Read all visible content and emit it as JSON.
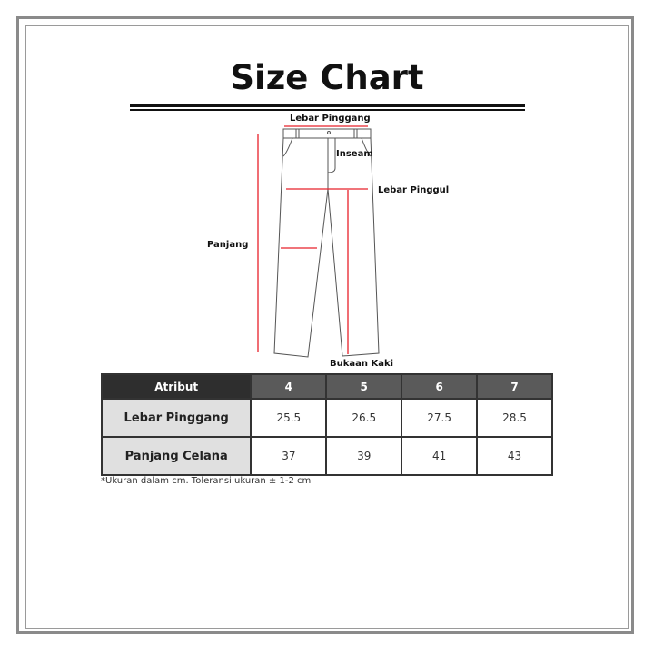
{
  "title": "Size Chart",
  "diagram_labels": {
    "waist": "Lebar Pinggang",
    "inseam": "Inseam",
    "hip": "Lebar Pinggul",
    "length": "Panjang",
    "leg_opening": "Bukaan Kaki"
  },
  "colors": {
    "measure_line": "#e8202a",
    "header_dark": "#2e2e2e",
    "header": "#5a5a5a",
    "row_header_bg": "#e0e0e0"
  },
  "table": {
    "headers": [
      "Atribut",
      "4",
      "5",
      "6",
      "7"
    ],
    "rows": [
      {
        "label": "Lebar Pinggang",
        "values": [
          "25.5",
          "26.5",
          "27.5",
          "28.5"
        ]
      },
      {
        "label": "Panjang Celana",
        "values": [
          "37",
          "39",
          "41",
          "43"
        ]
      }
    ]
  },
  "note": "*Ukuran dalam cm. Toleransi ukuran ± 1-2 cm"
}
